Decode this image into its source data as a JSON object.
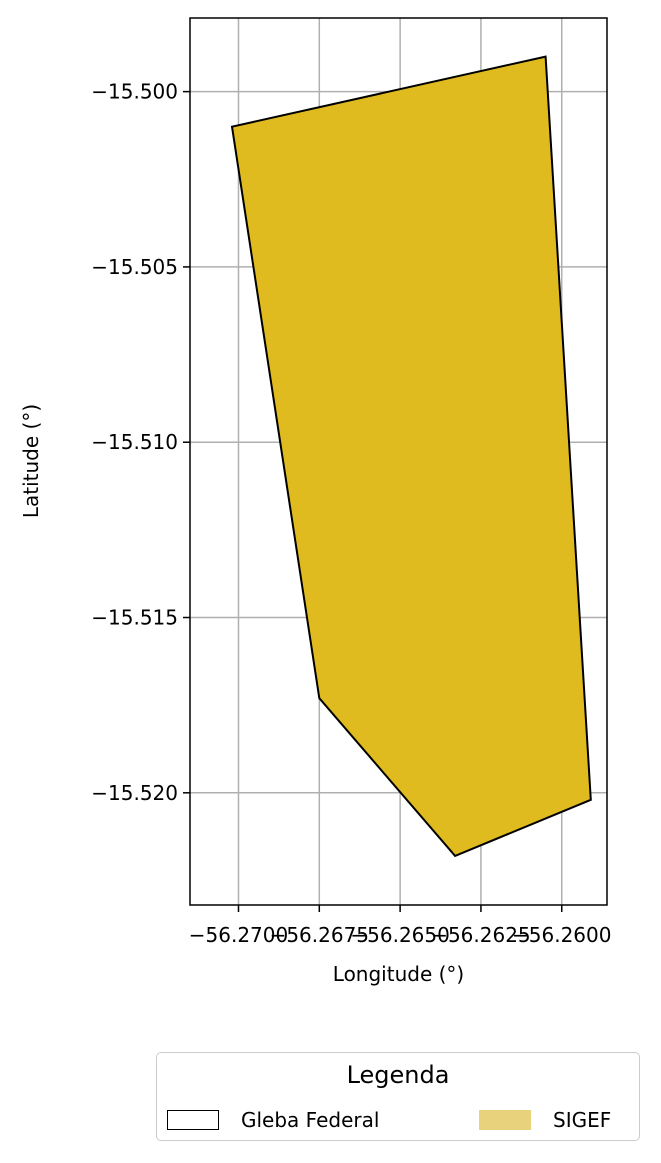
{
  "chart_data": {
    "type": "map-polygon",
    "xlabel": "Longitude (°)",
    "ylabel": "Latitude (°)",
    "xlim": [
      -56.2715,
      -56.2586
    ],
    "ylim": [
      -15.5232,
      -15.4979
    ],
    "x_ticks": [
      -56.27,
      -56.2675,
      -56.265,
      -56.2625,
      -56.26
    ],
    "x_tick_labels": [
      "−56.2700",
      "−56.2675",
      "−56.2650",
      "−56.2625",
      "−56.2600"
    ],
    "y_ticks": [
      -15.5,
      -15.505,
      -15.51,
      -15.515,
      -15.52
    ],
    "y_tick_labels": [
      "−15.500",
      "−15.505",
      "−15.510",
      "−15.515",
      "−15.520"
    ],
    "grid": true,
    "series": [
      {
        "name": "SIGEF",
        "fill": "#dfbb20",
        "edge": "#000000",
        "polygon": [
          [
            -56.2702,
            -15.501
          ],
          [
            -56.2605,
            -15.499
          ],
          [
            -56.2591,
            -15.5202
          ],
          [
            -56.2633,
            -15.5218
          ],
          [
            -56.2675,
            -15.5173
          ]
        ]
      }
    ],
    "legend": {
      "title": "Legenda",
      "position": "bottom-center",
      "entries": [
        {
          "label": "Gleba Federal",
          "fill": "#ffffff",
          "edge": "#000000"
        },
        {
          "label": "SIGEF",
          "fill": "#e9d27c",
          "edge": "#e9d27c"
        }
      ]
    }
  }
}
